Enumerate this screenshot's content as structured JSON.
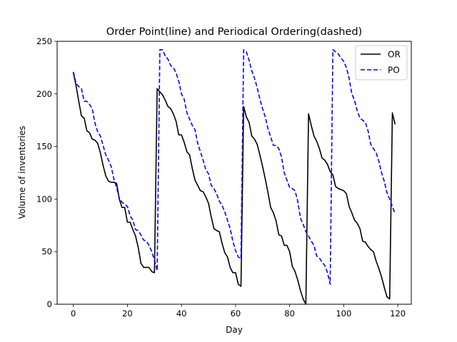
{
  "chart_data": {
    "type": "line",
    "title": "Order Point(line) and Periodical Ordering(dashed)",
    "xlabel": "Day",
    "ylabel": "Volume of inventories",
    "xlim": [
      -6,
      125
    ],
    "ylim": [
      0,
      250
    ],
    "xticks": [
      0,
      20,
      40,
      60,
      80,
      100,
      120
    ],
    "yticks": [
      0,
      50,
      100,
      150,
      200,
      250
    ],
    "grid": false,
    "legend_position": "top-right",
    "series": [
      {
        "name": "OR",
        "color": "#000000",
        "style": "solid",
        "x": [
          0,
          1,
          2,
          3,
          4,
          5,
          6,
          7,
          8,
          9,
          10,
          11,
          12,
          13,
          14,
          15,
          16,
          17,
          18,
          19,
          20,
          21,
          22,
          23,
          24,
          25,
          26,
          27,
          28,
          29,
          30,
          31,
          32,
          33,
          34,
          35,
          36,
          37,
          38,
          39,
          40,
          41,
          42,
          43,
          44,
          45,
          46,
          47,
          48,
          49,
          50,
          51,
          52,
          53,
          54,
          55,
          56,
          57,
          58,
          59,
          60,
          61,
          62,
          63,
          64,
          65,
          66,
          67,
          68,
          69,
          70,
          71,
          72,
          73,
          74,
          75,
          76,
          77,
          78,
          79,
          80,
          81,
          82,
          83,
          84,
          85,
          86,
          87,
          88,
          89,
          90,
          91,
          92,
          93,
          94,
          95,
          96,
          97,
          98,
          99,
          100,
          101,
          102,
          103,
          104,
          105,
          106,
          107,
          108,
          109,
          110,
          111,
          112,
          113,
          114,
          115,
          116,
          117,
          118,
          119
        ],
        "y": [
          220,
          208,
          193,
          179,
          177,
          165,
          163,
          157,
          156,
          153,
          144,
          132,
          122,
          117,
          116,
          116,
          115,
          100,
          92,
          92,
          78,
          78,
          71,
          65,
          54,
          39,
          35,
          35,
          35,
          31,
          30,
          205,
          202,
          199,
          194,
          188,
          186,
          181,
          174,
          161,
          161,
          154,
          145,
          142,
          129,
          118,
          113,
          108,
          107,
          102,
          96,
          83,
          72,
          70,
          69,
          58,
          49,
          45,
          35,
          30,
          30,
          19,
          17,
          188,
          178,
          173,
          160,
          157,
          152,
          142,
          131,
          119,
          106,
          92,
          87,
          79,
          66,
          65,
          56,
          56,
          50,
          36,
          31,
          23,
          13,
          5,
          0,
          181,
          170,
          160,
          155,
          148,
          139,
          137,
          133,
          126,
          123,
          112,
          110,
          109,
          108,
          105,
          93,
          87,
          80,
          77,
          72,
          60,
          59,
          55,
          52,
          50,
          41,
          34,
          26,
          16,
          7,
          5,
          182,
          171
        ]
      },
      {
        "name": "PO",
        "color": "#0000ff",
        "style": "dashed",
        "x": [
          0,
          1,
          2,
          3,
          4,
          5,
          6,
          7,
          8,
          9,
          10,
          11,
          12,
          13,
          14,
          15,
          16,
          17,
          18,
          19,
          20,
          21,
          22,
          23,
          24,
          25,
          26,
          27,
          28,
          29,
          30,
          31,
          32,
          33,
          34,
          35,
          36,
          37,
          38,
          39,
          40,
          41,
          42,
          43,
          44,
          45,
          46,
          47,
          48,
          49,
          50,
          51,
          52,
          53,
          54,
          55,
          56,
          57,
          58,
          59,
          60,
          61,
          62,
          63,
          64,
          65,
          66,
          67,
          68,
          69,
          70,
          71,
          72,
          73,
          74,
          75,
          76,
          77,
          78,
          79,
          80,
          81,
          82,
          83,
          84,
          85,
          86,
          87,
          88,
          89,
          90,
          91,
          92,
          93,
          94,
          95,
          96,
          97,
          98,
          99,
          100,
          101,
          102,
          103,
          104,
          105,
          106,
          107,
          108,
          109,
          110,
          111,
          112,
          113,
          114,
          115,
          116,
          117,
          118,
          119
        ],
        "y": [
          221,
          210,
          207,
          205,
          193,
          193,
          190,
          186,
          172,
          164,
          160,
          151,
          142,
          137,
          131,
          119,
          111,
          101,
          97,
          95,
          93,
          84,
          80,
          71,
          70,
          66,
          61,
          60,
          56,
          50,
          42,
          32,
          242,
          242,
          236,
          233,
          227,
          225,
          220,
          212,
          200,
          195,
          182,
          176,
          170,
          166,
          153,
          145,
          137,
          128,
          124,
          113,
          110,
          105,
          98,
          94,
          88,
          80,
          72,
          60,
          51,
          45,
          43,
          242,
          240,
          232,
          222,
          215,
          206,
          195,
          186,
          178,
          167,
          159,
          151,
          151,
          148,
          140,
          125,
          118,
          111,
          110,
          108,
          98,
          82,
          76,
          69,
          65,
          60,
          56,
          46,
          44,
          40,
          37,
          30,
          19,
          242,
          240,
          238,
          234,
          231,
          225,
          215,
          200,
          194,
          184,
          177,
          175,
          173,
          165,
          152,
          148,
          144,
          136,
          125,
          117,
          106,
          100,
          93,
          86
        ]
      }
    ]
  }
}
